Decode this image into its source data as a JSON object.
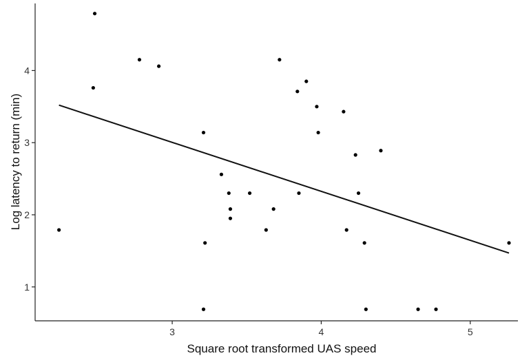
{
  "chart_data": {
    "type": "scatter",
    "xlabel": "Square root transformed UAS speed",
    "ylabel": "Log latency to return (min)",
    "xlim": [
      2.08,
      5.32
    ],
    "ylim": [
      0.53,
      4.93
    ],
    "xticks": [
      3,
      4,
      5
    ],
    "yticks": [
      1,
      2,
      3,
      4
    ],
    "grid": false,
    "points": [
      {
        "x": 2.24,
        "y": 1.79
      },
      {
        "x": 2.47,
        "y": 3.76
      },
      {
        "x": 2.48,
        "y": 4.79
      },
      {
        "x": 2.78,
        "y": 4.15
      },
      {
        "x": 2.91,
        "y": 4.06
      },
      {
        "x": 3.21,
        "y": 3.14
      },
      {
        "x": 3.22,
        "y": 1.61
      },
      {
        "x": 3.21,
        "y": 0.69
      },
      {
        "x": 3.33,
        "y": 2.56
      },
      {
        "x": 3.38,
        "y": 2.3
      },
      {
        "x": 3.39,
        "y": 2.08
      },
      {
        "x": 3.39,
        "y": 1.95
      },
      {
        "x": 3.52,
        "y": 2.3
      },
      {
        "x": 3.63,
        "y": 1.79
      },
      {
        "x": 3.68,
        "y": 2.08
      },
      {
        "x": 3.72,
        "y": 4.15
      },
      {
        "x": 3.84,
        "y": 3.71
      },
      {
        "x": 3.85,
        "y": 2.3
      },
      {
        "x": 3.9,
        "y": 3.85
      },
      {
        "x": 3.97,
        "y": 3.5
      },
      {
        "x": 3.98,
        "y": 3.14
      },
      {
        "x": 4.15,
        "y": 3.43
      },
      {
        "x": 4.17,
        "y": 1.79
      },
      {
        "x": 4.23,
        "y": 2.83
      },
      {
        "x": 4.25,
        "y": 2.3
      },
      {
        "x": 4.29,
        "y": 1.61
      },
      {
        "x": 4.3,
        "y": 0.69
      },
      {
        "x": 4.4,
        "y": 2.89
      },
      {
        "x": 4.65,
        "y": 0.69
      },
      {
        "x": 4.77,
        "y": 0.69
      },
      {
        "x": 5.26,
        "y": 1.61
      }
    ],
    "trendline": {
      "x": [
        2.24,
        5.26
      ],
      "y": [
        3.52,
        1.47
      ]
    }
  }
}
